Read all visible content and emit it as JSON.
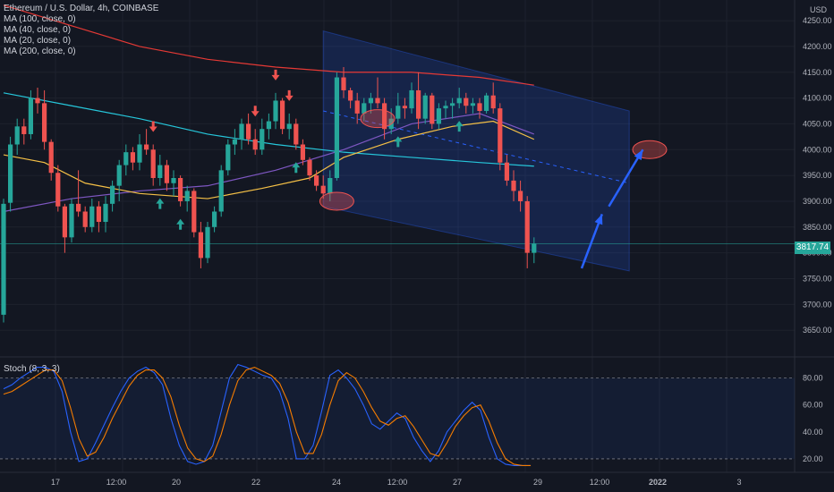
{
  "header": {
    "title": "Ethereum / U.S. Dollar, 4h, COINBASE",
    "ma_labels": [
      "MA (100, close, 0)",
      "MA (40, close, 0)",
      "MA (20, close, 0)",
      "MA (200, close, 0)"
    ],
    "currency": "USD"
  },
  "stoch_label": "Stoch (8, 3, 3)",
  "last_price": "3817.74",
  "colors": {
    "bg": "#131722",
    "up": "#26a69a",
    "down": "#ef5350",
    "ma100": "#26c6da",
    "ma40": "#7e57c2",
    "ma20": "#f5c046",
    "ma200": "#e53935",
    "stoch_k": "#2962ff",
    "stoch_d": "#f57c00",
    "arrow": "#2962ff"
  },
  "chart_data": [
    {
      "type": "candlestick",
      "title": "Ethereum / U.S. Dollar, 4h, COINBASE",
      "ylabel": "USD",
      "ylim": [
        3600,
        4290
      ],
      "y_ticks": [
        3650,
        3700,
        3750,
        3800,
        3850,
        3900,
        3950,
        4000,
        4050,
        4100,
        4150,
        4200,
        4250
      ],
      "x_ticks": [
        "17",
        "12:00",
        "20",
        "22",
        "24",
        "12:00",
        "27",
        "29",
        "12:00",
        "2022",
        "3"
      ],
      "grid": true,
      "last_price": 3817.74,
      "candles": [
        {
          "o": 3680,
          "h": 3905,
          "l": 3665,
          "c": 3895
        },
        {
          "o": 3897,
          "h": 4025,
          "l": 3880,
          "c": 4010
        },
        {
          "o": 4010,
          "h": 4060,
          "l": 3990,
          "c": 4045
        },
        {
          "o": 4045,
          "h": 4060,
          "l": 4010,
          "c": 4030
        },
        {
          "o": 4030,
          "h": 4115,
          "l": 4020,
          "c": 4100
        },
        {
          "o": 4100,
          "h": 4120,
          "l": 4070,
          "c": 4090
        },
        {
          "o": 4090,
          "h": 4115,
          "l": 4000,
          "c": 4015
        },
        {
          "o": 4015,
          "h": 4020,
          "l": 3940,
          "c": 3955
        },
        {
          "o": 3955,
          "h": 3970,
          "l": 3880,
          "c": 3890
        },
        {
          "o": 3890,
          "h": 3895,
          "l": 3800,
          "c": 3830
        },
        {
          "o": 3830,
          "h": 3905,
          "l": 3820,
          "c": 3895
        },
        {
          "o": 3895,
          "h": 3960,
          "l": 3870,
          "c": 3880
        },
        {
          "o": 3880,
          "h": 3890,
          "l": 3840,
          "c": 3850
        },
        {
          "o": 3850,
          "h": 3905,
          "l": 3840,
          "c": 3890
        },
        {
          "o": 3890,
          "h": 3900,
          "l": 3840,
          "c": 3860
        },
        {
          "o": 3860,
          "h": 3910,
          "l": 3840,
          "c": 3895
        },
        {
          "o": 3895,
          "h": 3940,
          "l": 3880,
          "c": 3930
        },
        {
          "o": 3930,
          "h": 3980,
          "l": 3900,
          "c": 3970
        },
        {
          "o": 3970,
          "h": 4010,
          "l": 3950,
          "c": 3995
        },
        {
          "o": 3995,
          "h": 4005,
          "l": 3960,
          "c": 3975
        },
        {
          "o": 3975,
          "h": 4030,
          "l": 3960,
          "c": 4010
        },
        {
          "o": 4010,
          "h": 4040,
          "l": 3990,
          "c": 4000
        },
        {
          "o": 4000,
          "h": 4010,
          "l": 3930,
          "c": 3945
        },
        {
          "o": 3945,
          "h": 3990,
          "l": 3930,
          "c": 3970
        },
        {
          "o": 3970,
          "h": 3980,
          "l": 3920,
          "c": 3935
        },
        {
          "o": 3935,
          "h": 3960,
          "l": 3910,
          "c": 3945
        },
        {
          "o": 3945,
          "h": 3950,
          "l": 3890,
          "c": 3900
        },
        {
          "o": 3900,
          "h": 3930,
          "l": 3880,
          "c": 3920
        },
        {
          "o": 3920,
          "h": 3925,
          "l": 3830,
          "c": 3840
        },
        {
          "o": 3840,
          "h": 3860,
          "l": 3770,
          "c": 3790
        },
        {
          "o": 3790,
          "h": 3860,
          "l": 3780,
          "c": 3850
        },
        {
          "o": 3850,
          "h": 3890,
          "l": 3840,
          "c": 3880
        },
        {
          "o": 3880,
          "h": 3970,
          "l": 3870,
          "c": 3960
        },
        {
          "o": 3960,
          "h": 4020,
          "l": 3950,
          "c": 4010
        },
        {
          "o": 4010,
          "h": 4040,
          "l": 3990,
          "c": 4020
        },
        {
          "o": 4020,
          "h": 4060,
          "l": 4000,
          "c": 4050
        },
        {
          "o": 4050,
          "h": 4070,
          "l": 4010,
          "c": 4020
        },
        {
          "o": 4020,
          "h": 4040,
          "l": 3990,
          "c": 4000
        },
        {
          "o": 4000,
          "h": 4060,
          "l": 3990,
          "c": 4040
        },
        {
          "o": 4040,
          "h": 4070,
          "l": 4020,
          "c": 4055
        },
        {
          "o": 4055,
          "h": 4110,
          "l": 4040,
          "c": 4095
        },
        {
          "o": 4095,
          "h": 4100,
          "l": 4030,
          "c": 4040
        },
        {
          "o": 4040,
          "h": 4070,
          "l": 4020,
          "c": 4050
        },
        {
          "o": 4050,
          "h": 4060,
          "l": 4000,
          "c": 4010
        },
        {
          "o": 4010,
          "h": 4020,
          "l": 3970,
          "c": 3980
        },
        {
          "o": 3980,
          "h": 3985,
          "l": 3940,
          "c": 3950
        },
        {
          "o": 3950,
          "h": 3960,
          "l": 3920,
          "c": 3930
        },
        {
          "o": 3930,
          "h": 3950,
          "l": 3905,
          "c": 3915
        },
        {
          "o": 3915,
          "h": 3960,
          "l": 3900,
          "c": 3945
        },
        {
          "o": 3945,
          "h": 4150,
          "l": 3940,
          "c": 4140
        },
        {
          "o": 4140,
          "h": 4160,
          "l": 4100,
          "c": 4115
        },
        {
          "o": 4115,
          "h": 4120,
          "l": 4080,
          "c": 4095
        },
        {
          "o": 4095,
          "h": 4110,
          "l": 4050,
          "c": 4070
        },
        {
          "o": 4070,
          "h": 4100,
          "l": 4055,
          "c": 4090
        },
        {
          "o": 4090,
          "h": 4110,
          "l": 4070,
          "c": 4100
        },
        {
          "o": 4100,
          "h": 4140,
          "l": 4080,
          "c": 4090
        },
        {
          "o": 4090,
          "h": 4100,
          "l": 4020,
          "c": 4040
        },
        {
          "o": 4040,
          "h": 4080,
          "l": 4030,
          "c": 4060
        },
        {
          "o": 4060,
          "h": 4110,
          "l": 4050,
          "c": 4085
        },
        {
          "o": 4085,
          "h": 4100,
          "l": 4060,
          "c": 4080
        },
        {
          "o": 4080,
          "h": 4130,
          "l": 4070,
          "c": 4115
        },
        {
          "o": 4115,
          "h": 4150,
          "l": 4040,
          "c": 4060
        },
        {
          "o": 4060,
          "h": 4110,
          "l": 4050,
          "c": 4105
        },
        {
          "o": 4105,
          "h": 4110,
          "l": 4040,
          "c": 4050
        },
        {
          "o": 4050,
          "h": 4090,
          "l": 4040,
          "c": 4080
        },
        {
          "o": 4080,
          "h": 4095,
          "l": 4060,
          "c": 4085
        },
        {
          "o": 4085,
          "h": 4100,
          "l": 4060,
          "c": 4090
        },
        {
          "o": 4090,
          "h": 4120,
          "l": 4080,
          "c": 4100
        },
        {
          "o": 4100,
          "h": 4110,
          "l": 4070,
          "c": 4085
        },
        {
          "o": 4085,
          "h": 4100,
          "l": 4070,
          "c": 4090
        },
        {
          "o": 4090,
          "h": 4100,
          "l": 4060,
          "c": 4075
        },
        {
          "o": 4075,
          "h": 4110,
          "l": 4070,
          "c": 4105
        },
        {
          "o": 4105,
          "h": 4130,
          "l": 4070,
          "c": 4080
        },
        {
          "o": 4080,
          "h": 4090,
          "l": 3960,
          "c": 3975
        },
        {
          "o": 3975,
          "h": 3990,
          "l": 3930,
          "c": 3940
        },
        {
          "o": 3940,
          "h": 3960,
          "l": 3900,
          "c": 3920
        },
        {
          "o": 3920,
          "h": 3940,
          "l": 3880,
          "c": 3900
        },
        {
          "o": 3900,
          "h": 3910,
          "l": 3770,
          "c": 3800
        },
        {
          "o": 3800,
          "h": 3830,
          "l": 3780,
          "c": 3817.74
        }
      ],
      "moving_averages": [
        {
          "name": "MA (100, close, 0)",
          "points": [
            [
              0,
              4110
            ],
            [
              10,
              4085
            ],
            [
              20,
              4060
            ],
            [
              30,
              4030
            ],
            [
              40,
              4010
            ],
            [
              50,
              3995
            ],
            [
              60,
              3985
            ],
            [
              70,
              3975
            ],
            [
              78,
              3968
            ]
          ]
        },
        {
          "name": "MA (40, close, 0)",
          "points": [
            [
              0,
              3880
            ],
            [
              10,
              3905
            ],
            [
              20,
              3920
            ],
            [
              30,
              3930
            ],
            [
              40,
              3960
            ],
            [
              50,
              4000
            ],
            [
              60,
              4050
            ],
            [
              70,
              4070
            ],
            [
              78,
              4030
            ]
          ]
        },
        {
          "name": "MA (20, close, 0)",
          "points": [
            [
              0,
              3990
            ],
            [
              6,
              3975
            ],
            [
              12,
              3935
            ],
            [
              20,
              3915
            ],
            [
              30,
              3905
            ],
            [
              38,
              3925
            ],
            [
              45,
              3945
            ],
            [
              50,
              3985
            ],
            [
              58,
              4020
            ],
            [
              66,
              4045
            ],
            [
              72,
              4055
            ],
            [
              78,
              4020
            ]
          ]
        },
        {
          "name": "MA (200, close, 0)",
          "points": [
            [
              0,
              4280
            ],
            [
              10,
              4240
            ],
            [
              20,
              4200
            ],
            [
              30,
              4175
            ],
            [
              40,
              4160
            ],
            [
              50,
              4150
            ],
            [
              60,
              4150
            ],
            [
              70,
              4140
            ],
            [
              78,
              4125
            ]
          ]
        }
      ],
      "channel": {
        "upper": [
          [
            47,
            4230
          ],
          [
            92,
            4075
          ]
        ],
        "lower": [
          [
            47,
            3890
          ],
          [
            92,
            3765
          ]
        ],
        "mid": [
          [
            47,
            4075
          ],
          [
            92,
            3935
          ]
        ]
      },
      "sell_markers": [
        22,
        37,
        40,
        42
      ],
      "buy_markers": [
        23,
        26,
        43,
        58,
        67
      ],
      "ellipses": [
        {
          "x": 49,
          "y": 3900
        },
        {
          "x": 55,
          "y": 4060
        },
        {
          "x": 95,
          "y": 4000
        }
      ],
      "projection_arrows": [
        [
          [
            85,
            3770
          ],
          [
            88,
            3875
          ]
        ],
        [
          [
            89,
            3890
          ],
          [
            94,
            4000
          ]
        ]
      ]
    },
    {
      "type": "line",
      "title": "Stoch (8, 3, 3)",
      "ylim": [
        10,
        95
      ],
      "y_ticks": [
        20.0,
        40.0,
        60.0,
        80.0
      ],
      "band": [
        20,
        80
      ],
      "series": [
        {
          "name": "%K",
          "values": [
            72,
            75,
            80,
            84,
            88,
            88,
            85,
            70,
            40,
            18,
            20,
            32,
            45,
            58,
            70,
            80,
            85,
            88,
            84,
            75,
            50,
            30,
            18,
            16,
            18,
            30,
            55,
            80,
            90,
            88,
            85,
            82,
            80,
            70,
            50,
            20,
            20,
            30,
            55,
            82,
            86,
            80,
            72,
            60,
            46,
            42,
            48,
            54,
            50,
            36,
            26,
            18,
            26,
            40,
            48,
            56,
            62,
            56,
            36,
            20,
            16,
            15,
            15,
            15
          ]
        },
        {
          "name": "%D",
          "values": [
            68,
            70,
            74,
            78,
            82,
            86,
            86,
            78,
            58,
            35,
            22,
            25,
            36,
            50,
            62,
            74,
            82,
            86,
            86,
            80,
            66,
            45,
            28,
            20,
            18,
            22,
            38,
            60,
            78,
            86,
            88,
            85,
            82,
            76,
            62,
            40,
            24,
            24,
            38,
            60,
            78,
            84,
            80,
            70,
            58,
            48,
            45,
            50,
            52,
            44,
            34,
            24,
            22,
            32,
            44,
            52,
            58,
            60,
            48,
            32,
            20,
            16,
            15,
            15
          ]
        }
      ]
    }
  ]
}
